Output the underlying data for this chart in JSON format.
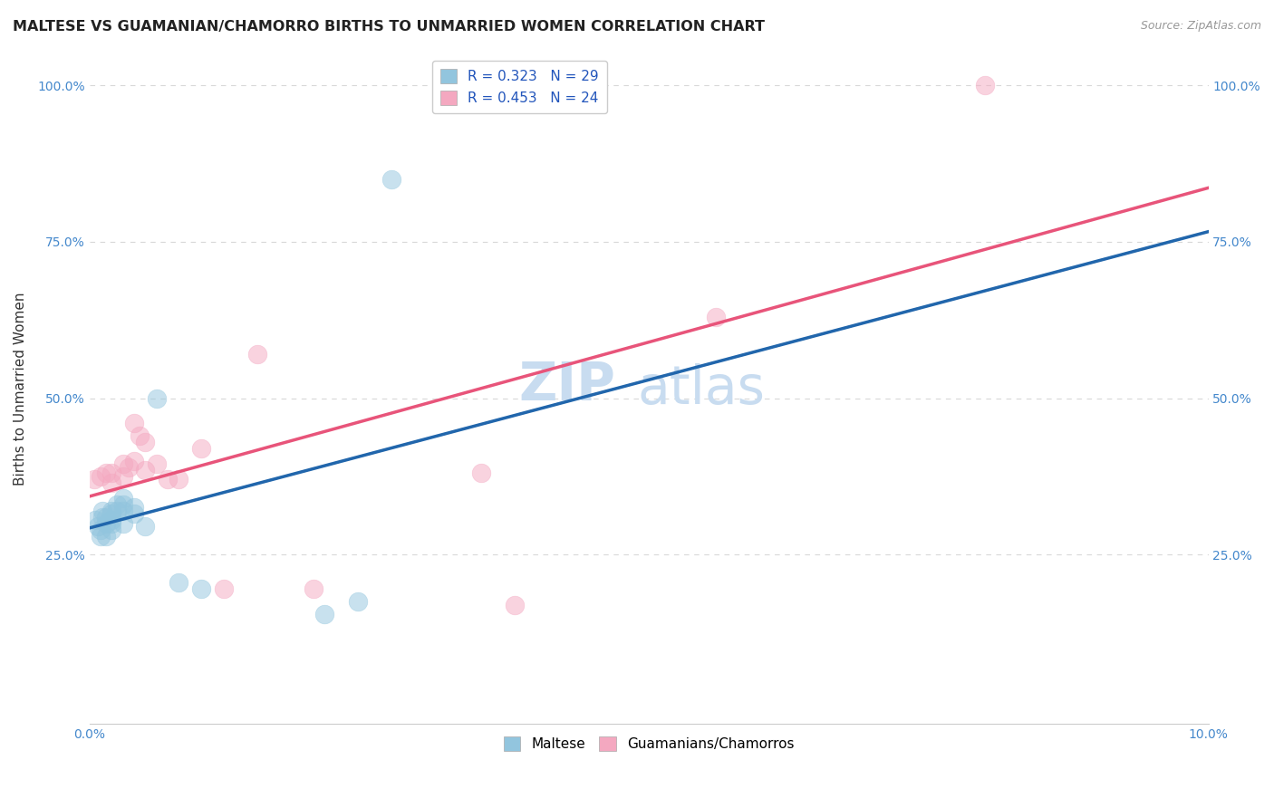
{
  "title": "MALTESE VS GUAMANIAN/CHAMORRO BIRTHS TO UNMARRIED WOMEN CORRELATION CHART",
  "source": "Source: ZipAtlas.com",
  "ylabel": "Births to Unmarried Women",
  "xlabel": "",
  "watermark_zip": "ZIP",
  "watermark_atlas": "atlas",
  "blue_R": 0.323,
  "blue_N": 29,
  "pink_R": 0.453,
  "pink_N": 24,
  "blue_color": "#92c5de",
  "pink_color": "#f4a8c0",
  "blue_line_color": "#2166ac",
  "pink_line_color": "#e8547a",
  "dashed_line_color": "#aec7d8",
  "background_color": "#ffffff",
  "grid_color": "#d8d8d8",
  "xlim": [
    0.0,
    0.1
  ],
  "ylim": [
    -0.02,
    1.05
  ],
  "xtick_labels": [
    "0.0%",
    "10.0%"
  ],
  "ytick_labels": [
    "25.0%",
    "50.0%",
    "75.0%",
    "100.0%"
  ],
  "ytick_values": [
    0.25,
    0.5,
    0.75,
    1.0
  ],
  "xtick_values": [
    0.0,
    0.1
  ],
  "legend_labels": [
    "Maltese",
    "Guamanians/Chamorros"
  ],
  "blue_scatter_x": [
    0.0005,
    0.0008,
    0.001,
    0.001,
    0.0012,
    0.0012,
    0.0015,
    0.0015,
    0.0015,
    0.002,
    0.002,
    0.002,
    0.002,
    0.002,
    0.0025,
    0.0025,
    0.003,
    0.003,
    0.003,
    0.003,
    0.004,
    0.004,
    0.005,
    0.006,
    0.008,
    0.01,
    0.021,
    0.024,
    0.027
  ],
  "blue_scatter_y": [
    0.305,
    0.295,
    0.29,
    0.28,
    0.32,
    0.31,
    0.31,
    0.3,
    0.28,
    0.32,
    0.315,
    0.305,
    0.3,
    0.29,
    0.33,
    0.32,
    0.34,
    0.33,
    0.32,
    0.3,
    0.325,
    0.315,
    0.295,
    0.5,
    0.205,
    0.195,
    0.155,
    0.175,
    0.85
  ],
  "pink_scatter_x": [
    0.0004,
    0.001,
    0.0015,
    0.002,
    0.002,
    0.003,
    0.003,
    0.0035,
    0.004,
    0.004,
    0.0045,
    0.005,
    0.005,
    0.006,
    0.007,
    0.008,
    0.01,
    0.012,
    0.015,
    0.02,
    0.035,
    0.038,
    0.056,
    0.08
  ],
  "pink_scatter_y": [
    0.37,
    0.375,
    0.38,
    0.38,
    0.365,
    0.395,
    0.375,
    0.39,
    0.4,
    0.46,
    0.44,
    0.385,
    0.43,
    0.395,
    0.37,
    0.37,
    0.42,
    0.195,
    0.57,
    0.195,
    0.38,
    0.17,
    0.63,
    1.0
  ],
  "title_fontsize": 11.5,
  "axis_label_fontsize": 11,
  "tick_fontsize": 10,
  "legend_fontsize": 11,
  "watermark_fontsize_zip": 42,
  "watermark_fontsize_atlas": 42,
  "watermark_color": "#c8dcf0",
  "source_fontsize": 9,
  "scatter_size": 220,
  "scatter_alpha": 0.5,
  "scatter_edgewidth": 0.5
}
